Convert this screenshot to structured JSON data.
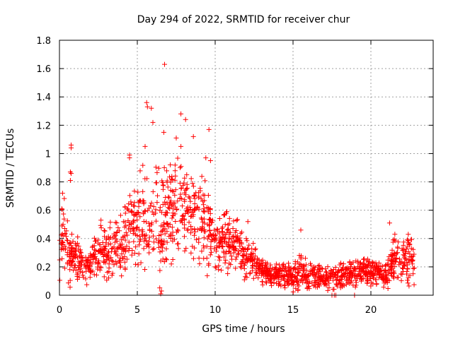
{
  "chart_data": {
    "type": "scatter",
    "title": "Day 294 of 2022, SRMTID for receiver chur",
    "xlabel": "GPS time / hours",
    "ylabel": "SRMTID / TECUs",
    "xlim": [
      0,
      24
    ],
    "ylim": [
      0,
      1.8
    ],
    "xticks": [
      0,
      5,
      10,
      15,
      20
    ],
    "yticks": [
      0,
      0.2,
      0.4,
      0.6,
      0.8,
      1,
      1.2,
      1.4,
      1.6,
      1.8
    ],
    "xtick_labels": [
      "0",
      "5",
      "10",
      "15",
      "20"
    ],
    "ytick_labels": [
      "0",
      "0.2",
      "0.4",
      "0.6",
      "0.8",
      "1",
      "1.2",
      "1.4",
      "1.6",
      "1.8"
    ],
    "grid": true,
    "marker": "+",
    "color": "#ff0000",
    "profile": [
      [
        0.0,
        0.32,
        0.14
      ],
      [
        0.3,
        0.42,
        0.16
      ],
      [
        0.6,
        0.3,
        0.12
      ],
      [
        1.0,
        0.26,
        0.09
      ],
      [
        1.5,
        0.21,
        0.07
      ],
      [
        2.0,
        0.22,
        0.07
      ],
      [
        2.5,
        0.33,
        0.1
      ],
      [
        3.0,
        0.3,
        0.1
      ],
      [
        3.5,
        0.33,
        0.11
      ],
      [
        4.0,
        0.36,
        0.13
      ],
      [
        4.5,
        0.45,
        0.16
      ],
      [
        5.0,
        0.52,
        0.18
      ],
      [
        5.5,
        0.55,
        0.22
      ],
      [
        6.0,
        0.5,
        0.25
      ],
      [
        6.5,
        0.5,
        0.24
      ],
      [
        7.0,
        0.58,
        0.23
      ],
      [
        7.5,
        0.64,
        0.24
      ],
      [
        8.0,
        0.6,
        0.22
      ],
      [
        8.5,
        0.58,
        0.2
      ],
      [
        9.0,
        0.52,
        0.18
      ],
      [
        9.5,
        0.5,
        0.17
      ],
      [
        10.0,
        0.4,
        0.13
      ],
      [
        10.5,
        0.38,
        0.12
      ],
      [
        11.0,
        0.38,
        0.12
      ],
      [
        11.5,
        0.34,
        0.1
      ],
      [
        12.0,
        0.28,
        0.09
      ],
      [
        12.5,
        0.23,
        0.07
      ],
      [
        13.0,
        0.18,
        0.06
      ],
      [
        13.5,
        0.15,
        0.05
      ],
      [
        14.0,
        0.14,
        0.05
      ],
      [
        14.5,
        0.13,
        0.05
      ],
      [
        15.0,
        0.12,
        0.05
      ],
      [
        15.5,
        0.18,
        0.08
      ],
      [
        16.0,
        0.14,
        0.05
      ],
      [
        16.5,
        0.14,
        0.05
      ],
      [
        17.0,
        0.12,
        0.05
      ],
      [
        17.5,
        0.12,
        0.05
      ],
      [
        18.0,
        0.13,
        0.05
      ],
      [
        18.5,
        0.16,
        0.06
      ],
      [
        19.0,
        0.15,
        0.05
      ],
      [
        19.5,
        0.16,
        0.05
      ],
      [
        20.0,
        0.18,
        0.06
      ],
      [
        20.5,
        0.15,
        0.05
      ],
      [
        21.0,
        0.16,
        0.06
      ],
      [
        21.5,
        0.28,
        0.1
      ],
      [
        22.0,
        0.26,
        0.09
      ],
      [
        22.5,
        0.24,
        0.09
      ],
      [
        22.8,
        0.26,
        0.09
      ]
    ],
    "x_end": 22.8,
    "n_points": 1800,
    "outliers": [
      {
        "x": 6.75,
        "y": 1.63
      },
      {
        "x": 5.6,
        "y": 1.36
      },
      {
        "x": 5.65,
        "y": 1.33
      },
      {
        "x": 5.9,
        "y": 1.32
      },
      {
        "x": 7.8,
        "y": 1.28
      },
      {
        "x": 8.1,
        "y": 1.24
      },
      {
        "x": 9.6,
        "y": 1.17
      },
      {
        "x": 6.0,
        "y": 1.22
      },
      {
        "x": 6.7,
        "y": 1.15
      },
      {
        "x": 7.5,
        "y": 1.11
      },
      {
        "x": 0.75,
        "y": 1.06
      },
      {
        "x": 0.75,
        "y": 1.04
      },
      {
        "x": 0.7,
        "y": 0.87
      },
      {
        "x": 0.75,
        "y": 0.86
      },
      {
        "x": 0.7,
        "y": 0.81
      },
      {
        "x": 4.5,
        "y": 0.99
      },
      {
        "x": 4.5,
        "y": 0.97
      },
      {
        "x": 5.5,
        "y": 1.05
      },
      {
        "x": 9.4,
        "y": 0.97
      },
      {
        "x": 9.7,
        "y": 0.95
      },
      {
        "x": 7.8,
        "y": 1.05
      },
      {
        "x": 8.6,
        "y": 1.12
      },
      {
        "x": 21.2,
        "y": 0.51
      },
      {
        "x": 22.4,
        "y": 0.43
      },
      {
        "x": 15.5,
        "y": 0.46
      },
      {
        "x": 12.1,
        "y": 0.52
      },
      {
        "x": 0.15,
        "y": 0.61
      },
      {
        "x": 0.2,
        "y": 0.72
      },
      {
        "x": 17.5,
        "y": 0.0
      },
      {
        "x": 17.65,
        "y": 0.0
      },
      {
        "x": 17.75,
        "y": 0.0
      },
      {
        "x": 18.95,
        "y": 0.0
      },
      {
        "x": 6.5,
        "y": 0.01
      },
      {
        "x": 6.55,
        "y": 0.03
      }
    ]
  }
}
